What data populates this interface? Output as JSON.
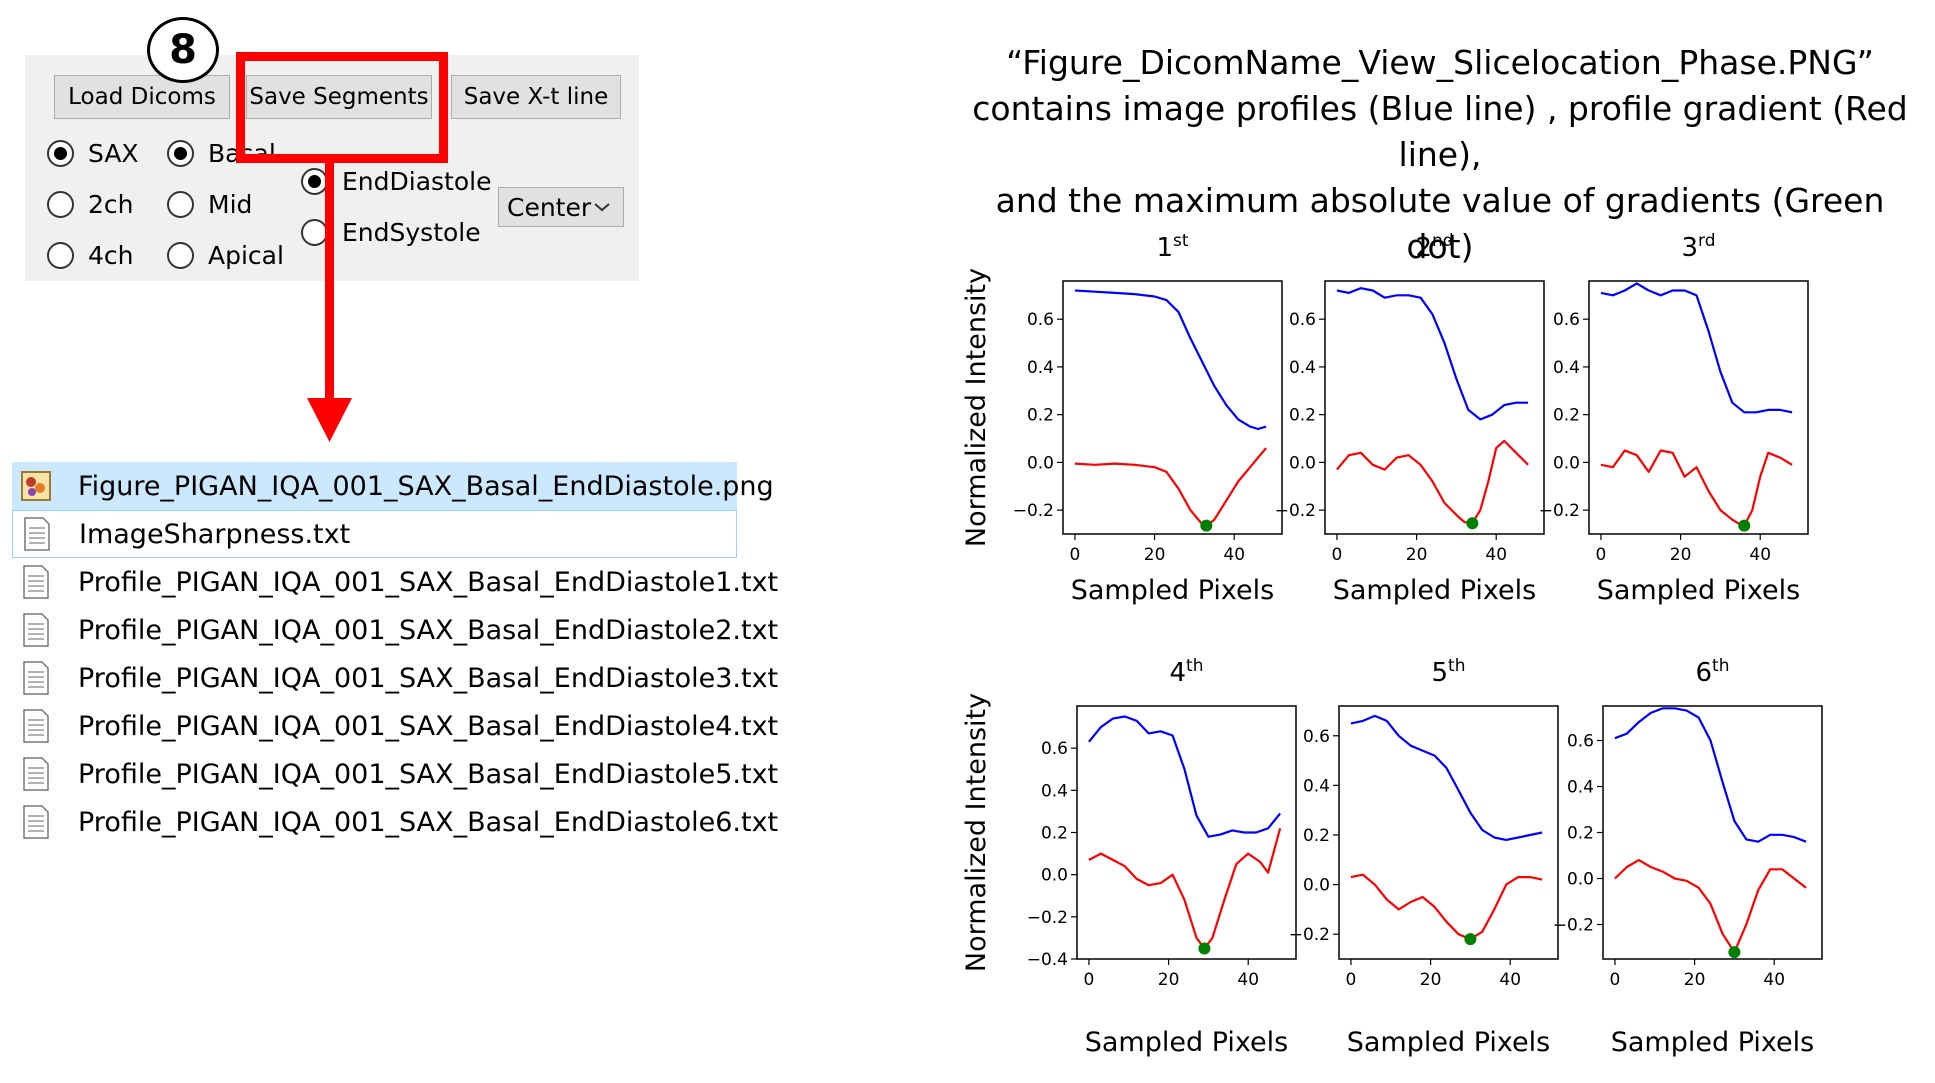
{
  "app": {
    "buttons": {
      "load": "Load Dicoms",
      "save_segments": "Save Segments",
      "save_xt": "Save X-t line"
    },
    "view_options": [
      {
        "label": "SAX",
        "selected": true
      },
      {
        "label": "2ch",
        "selected": false
      },
      {
        "label": "4ch",
        "selected": false
      }
    ],
    "slice_options": [
      {
        "label": "Basal",
        "selected": true
      },
      {
        "label": "Mid",
        "selected": false
      },
      {
        "label": "Apical",
        "selected": false
      }
    ],
    "phase_options": [
      {
        "label": "EndDiastole",
        "selected": true
      },
      {
        "label": "EndSystole",
        "selected": false
      }
    ],
    "location_select": {
      "value": "Center"
    }
  },
  "step_number": "8",
  "files": [
    {
      "name": "Figure_PIGAN_IQA_001_SAX_Basal_EndDiastole.png",
      "icon": "image-file-icon",
      "selected": true
    },
    {
      "name": "ImageSharpness.txt",
      "icon": "text-file-icon",
      "focused": true
    },
    {
      "name": "Profile_PIGAN_IQA_001_SAX_Basal_EndDiastole1.txt",
      "icon": "text-file-icon"
    },
    {
      "name": "Profile_PIGAN_IQA_001_SAX_Basal_EndDiastole2.txt",
      "icon": "text-file-icon"
    },
    {
      "name": "Profile_PIGAN_IQA_001_SAX_Basal_EndDiastole3.txt",
      "icon": "text-file-icon"
    },
    {
      "name": "Profile_PIGAN_IQA_001_SAX_Basal_EndDiastole4.txt",
      "icon": "text-file-icon"
    },
    {
      "name": "Profile_PIGAN_IQA_001_SAX_Basal_EndDiastole5.txt",
      "icon": "text-file-icon"
    },
    {
      "name": "Profile_PIGAN_IQA_001_SAX_Basal_EndDiastole6.txt",
      "icon": "text-file-icon"
    }
  ],
  "caption": {
    "line1": "“Figure_DicomName_View_Slicelocation_Phase.PNG”",
    "line2": "contains image profiles (Blue line) , profile gradient (Red line),",
    "line3": "and the maximum absolute value of gradients (Green dot)"
  },
  "colors": {
    "profile": "#0000ff",
    "gradient": "#ff0000",
    "max_dot": "#008000",
    "highlight": "#ff0000"
  },
  "chart_data": [
    {
      "type": "line",
      "title": "1",
      "title_sup": "st",
      "xlabel": "Sampled Pixels",
      "ylabel": "Normalized Intensity",
      "xlim": [
        -3,
        52
      ],
      "ylim": [
        -0.3,
        0.76
      ],
      "xticks": [
        0,
        20,
        40
      ],
      "yticks": [
        -0.2,
        0.0,
        0.2,
        0.4,
        0.6
      ],
      "series": [
        {
          "x": [
            0,
            5,
            10,
            15,
            20,
            23,
            26,
            29,
            32,
            35,
            38,
            41,
            44,
            46,
            48
          ],
          "y": [
            0.72,
            0.715,
            0.71,
            0.705,
            0.695,
            0.68,
            0.63,
            0.52,
            0.42,
            0.32,
            0.24,
            0.18,
            0.15,
            0.14,
            0.15
          ]
        },
        {
          "x": [
            0,
            5,
            10,
            15,
            20,
            23,
            26,
            29,
            32,
            33,
            35,
            38,
            41,
            44,
            46,
            48
          ],
          "y": [
            -0.005,
            -0.01,
            -0.005,
            -0.01,
            -0.02,
            -0.04,
            -0.11,
            -0.2,
            -0.26,
            -0.265,
            -0.24,
            -0.16,
            -0.08,
            -0.02,
            0.02,
            0.06
          ]
        }
      ],
      "max_point": {
        "x": 33,
        "y": -0.265
      }
    },
    {
      "type": "line",
      "title": "2",
      "title_sup": "nd",
      "xlabel": "Sampled Pixels",
      "ylabel": "",
      "xlim": [
        -3,
        52
      ],
      "ylim": [
        -0.3,
        0.76
      ],
      "xticks": [
        0,
        20,
        40
      ],
      "yticks": [
        -0.2,
        0.0,
        0.2,
        0.4,
        0.6
      ],
      "series": [
        {
          "x": [
            0,
            3,
            6,
            9,
            12,
            15,
            18,
            21,
            24,
            27,
            30,
            33,
            36,
            39,
            42,
            45,
            48
          ],
          "y": [
            0.72,
            0.71,
            0.73,
            0.72,
            0.69,
            0.7,
            0.7,
            0.69,
            0.62,
            0.5,
            0.35,
            0.22,
            0.18,
            0.2,
            0.24,
            0.25,
            0.25
          ]
        },
        {
          "x": [
            0,
            3,
            6,
            9,
            12,
            15,
            18,
            21,
            24,
            27,
            30,
            32,
            34,
            36,
            38,
            40,
            42,
            45,
            48
          ],
          "y": [
            -0.03,
            0.03,
            0.04,
            -0.01,
            -0.03,
            0.02,
            0.03,
            -0.01,
            -0.08,
            -0.17,
            -0.22,
            -0.25,
            -0.255,
            -0.2,
            -0.08,
            0.06,
            0.09,
            0.04,
            -0.01
          ]
        }
      ],
      "max_point": {
        "x": 34,
        "y": -0.255
      }
    },
    {
      "type": "line",
      "title": "3",
      "title_sup": "rd",
      "xlabel": "Sampled Pixels",
      "ylabel": "",
      "xlim": [
        -3,
        52
      ],
      "ylim": [
        -0.3,
        0.76
      ],
      "xticks": [
        0,
        20,
        40
      ],
      "yticks": [
        -0.2,
        0.0,
        0.2,
        0.4,
        0.6
      ],
      "series": [
        {
          "x": [
            0,
            3,
            6,
            9,
            12,
            15,
            18,
            21,
            24,
            27,
            30,
            33,
            36,
            39,
            42,
            45,
            48
          ],
          "y": [
            0.71,
            0.7,
            0.72,
            0.75,
            0.72,
            0.7,
            0.72,
            0.72,
            0.7,
            0.55,
            0.38,
            0.25,
            0.21,
            0.21,
            0.22,
            0.22,
            0.21
          ]
        },
        {
          "x": [
            0,
            3,
            6,
            9,
            12,
            15,
            18,
            21,
            24,
            27,
            30,
            33,
            35,
            36,
            38,
            40,
            42,
            45,
            48
          ],
          "y": [
            -0.01,
            -0.02,
            0.05,
            0.03,
            -0.04,
            0.05,
            0.04,
            -0.06,
            -0.02,
            -0.12,
            -0.2,
            -0.24,
            -0.26,
            -0.265,
            -0.2,
            -0.06,
            0.04,
            0.02,
            -0.01
          ]
        }
      ],
      "max_point": {
        "x": 36,
        "y": -0.265
      }
    },
    {
      "type": "line",
      "title": "4",
      "title_sup": "th",
      "xlabel": "Sampled Pixels",
      "ylabel": "Normalized Intensity",
      "xlim": [
        -3,
        52
      ],
      "ylim": [
        -0.4,
        0.8
      ],
      "xticks": [
        0,
        20,
        40
      ],
      "yticks": [
        -0.4,
        -0.2,
        0.0,
        0.2,
        0.4,
        0.6
      ],
      "series": [
        {
          "x": [
            0,
            3,
            6,
            9,
            12,
            15,
            18,
            21,
            24,
            27,
            30,
            33,
            36,
            39,
            42,
            45,
            48
          ],
          "y": [
            0.63,
            0.7,
            0.74,
            0.75,
            0.73,
            0.67,
            0.68,
            0.66,
            0.5,
            0.28,
            0.18,
            0.19,
            0.21,
            0.2,
            0.2,
            0.22,
            0.29
          ]
        },
        {
          "x": [
            0,
            3,
            6,
            9,
            12,
            15,
            18,
            21,
            24,
            27,
            29,
            31,
            34,
            37,
            40,
            43,
            45,
            48
          ],
          "y": [
            0.07,
            0.1,
            0.07,
            0.04,
            -0.02,
            -0.05,
            -0.04,
            0.0,
            -0.12,
            -0.3,
            -0.35,
            -0.3,
            -0.12,
            0.05,
            0.1,
            0.06,
            0.01,
            0.22
          ]
        }
      ],
      "max_point": {
        "x": 29,
        "y": -0.35
      }
    },
    {
      "type": "line",
      "title": "5",
      "title_sup": "th",
      "xlabel": "Sampled Pixels",
      "ylabel": "",
      "xlim": [
        -3,
        52
      ],
      "ylim": [
        -0.3,
        0.72
      ],
      "xticks": [
        0,
        20,
        40
      ],
      "yticks": [
        -0.2,
        0.0,
        0.2,
        0.4,
        0.6
      ],
      "series": [
        {
          "x": [
            0,
            3,
            6,
            9,
            12,
            15,
            18,
            21,
            24,
            27,
            30,
            33,
            36,
            39,
            42,
            45,
            48
          ],
          "y": [
            0.65,
            0.66,
            0.68,
            0.66,
            0.6,
            0.56,
            0.54,
            0.52,
            0.47,
            0.38,
            0.29,
            0.22,
            0.19,
            0.18,
            0.19,
            0.2,
            0.21
          ]
        },
        {
          "x": [
            0,
            3,
            6,
            9,
            12,
            15,
            18,
            21,
            24,
            27,
            30,
            33,
            36,
            39,
            42,
            45,
            48
          ],
          "y": [
            0.03,
            0.04,
            0.0,
            -0.06,
            -0.1,
            -0.07,
            -0.05,
            -0.09,
            -0.15,
            -0.2,
            -0.22,
            -0.19,
            -0.1,
            0.0,
            0.03,
            0.03,
            0.02
          ]
        }
      ],
      "max_point": {
        "x": 30,
        "y": -0.22
      }
    },
    {
      "type": "line",
      "title": "6",
      "title_sup": "th",
      "xlabel": "Sampled Pixels",
      "ylabel": "",
      "xlim": [
        -3,
        52
      ],
      "ylim": [
        -0.35,
        0.75
      ],
      "xticks": [
        0,
        20,
        40
      ],
      "yticks": [
        -0.2,
        0.0,
        0.2,
        0.4,
        0.6
      ],
      "series": [
        {
          "x": [
            0,
            3,
            6,
            9,
            12,
            15,
            18,
            21,
            24,
            27,
            30,
            33,
            36,
            39,
            42,
            45,
            48
          ],
          "y": [
            0.61,
            0.63,
            0.68,
            0.72,
            0.74,
            0.74,
            0.73,
            0.7,
            0.6,
            0.42,
            0.25,
            0.17,
            0.16,
            0.19,
            0.19,
            0.18,
            0.16
          ]
        },
        {
          "x": [
            0,
            3,
            6,
            9,
            12,
            15,
            18,
            21,
            24,
            27,
            30,
            33,
            36,
            39,
            42,
            45,
            48
          ],
          "y": [
            0.0,
            0.05,
            0.08,
            0.05,
            0.03,
            0.0,
            -0.01,
            -0.04,
            -0.11,
            -0.24,
            -0.32,
            -0.2,
            -0.05,
            0.04,
            0.04,
            0.0,
            -0.04
          ]
        }
      ],
      "max_point": {
        "x": 30,
        "y": -0.32
      }
    }
  ]
}
